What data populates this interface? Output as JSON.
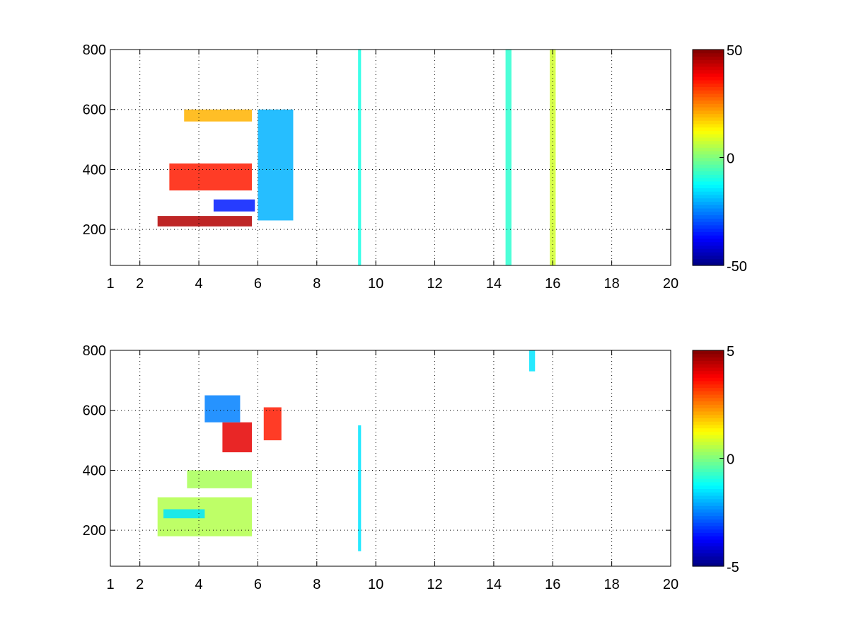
{
  "chart_data": [
    {
      "type": "heatmap",
      "title": "",
      "xlabel": "",
      "ylabel": "",
      "xlim": [
        1,
        20
      ],
      "ylim": [
        80,
        800
      ],
      "xticks": [
        1,
        2,
        4,
        6,
        8,
        10,
        12,
        14,
        16,
        18,
        20
      ],
      "xtick_labels": [
        "1",
        "2",
        "4",
        "6",
        "8",
        "10",
        "12",
        "14",
        "16",
        "18",
        "20"
      ],
      "yticks": [
        200,
        400,
        600,
        800
      ],
      "ytick_labels": [
        "200",
        "400",
        "600",
        "800"
      ],
      "grid": true,
      "colormap": "jet",
      "clim": [
        -50,
        50
      ],
      "colorbar_labels": [
        "50",
        "0",
        "-50"
      ],
      "features": [
        {
          "x_range": [
            2.6,
            5.8
          ],
          "y_range": [
            210,
            245
          ],
          "value": 45,
          "description": "strong positive band"
        },
        {
          "x_range": [
            3.0,
            5.8
          ],
          "y_range": [
            330,
            420
          ],
          "value": 35,
          "description": "positive band"
        },
        {
          "x_range": [
            3.5,
            5.8
          ],
          "y_range": [
            560,
            600
          ],
          "value": 20,
          "description": "upper positive band"
        },
        {
          "x_range": [
            4.5,
            5.9
          ],
          "y_range": [
            260,
            300
          ],
          "value": -35,
          "description": "negative band"
        },
        {
          "x_range": [
            6.0,
            7.2
          ],
          "y_range": [
            230,
            600
          ],
          "value": -20,
          "description": "negative region"
        },
        {
          "x_range": [
            9.4,
            9.5
          ],
          "y_range": [
            80,
            800
          ],
          "value": -10,
          "description": "vertical stripe"
        },
        {
          "x_range": [
            14.4,
            14.6
          ],
          "y_range": [
            80,
            800
          ],
          "value": -8,
          "description": "vertical stripe"
        },
        {
          "x_range": [
            15.9,
            16.1
          ],
          "y_range": [
            80,
            800
          ],
          "value": 8,
          "description": "vertical stripe"
        }
      ]
    },
    {
      "type": "heatmap",
      "title": "",
      "xlabel": "",
      "ylabel": "",
      "xlim": [
        1,
        20
      ],
      "ylim": [
        80,
        800
      ],
      "xticks": [
        1,
        2,
        4,
        6,
        8,
        10,
        12,
        14,
        16,
        18,
        20
      ],
      "xtick_labels": [
        "1",
        "2",
        "4",
        "6",
        "8",
        "10",
        "12",
        "14",
        "16",
        "18",
        "20"
      ],
      "yticks": [
        200,
        400,
        600,
        800
      ],
      "ytick_labels": [
        "200",
        "400",
        "600",
        "800"
      ],
      "grid": true,
      "colormap": "jet",
      "clim": [
        -5,
        5
      ],
      "colorbar_labels": [
        "5",
        "0",
        "-5"
      ],
      "features": [
        {
          "x_range": [
            2.6,
            5.8
          ],
          "y_range": [
            180,
            310
          ],
          "value": 0.5,
          "description": "weak positive region"
        },
        {
          "x_range": [
            2.8,
            4.2
          ],
          "y_range": [
            240,
            270
          ],
          "value": -1.5,
          "description": "cyan band"
        },
        {
          "x_range": [
            3.6,
            5.8
          ],
          "y_range": [
            340,
            400
          ],
          "value": 0.4,
          "description": "mixed band"
        },
        {
          "x_range": [
            4.8,
            5.8
          ],
          "y_range": [
            460,
            560
          ],
          "value": 4,
          "description": "red patches"
        },
        {
          "x_range": [
            6.2,
            6.8
          ],
          "y_range": [
            500,
            610
          ],
          "value": 3.5,
          "description": "red-orange patches"
        },
        {
          "x_range": [
            4.2,
            5.4
          ],
          "y_range": [
            560,
            650
          ],
          "value": -2.5,
          "description": "blue patches"
        },
        {
          "x_range": [
            9.4,
            9.5
          ],
          "y_range": [
            130,
            550
          ],
          "value": -1.5,
          "description": "vertical stripe"
        },
        {
          "x_range": [
            15.2,
            15.4
          ],
          "y_range": [
            730,
            800
          ],
          "value": -1.5,
          "description": "small patch"
        }
      ]
    }
  ]
}
